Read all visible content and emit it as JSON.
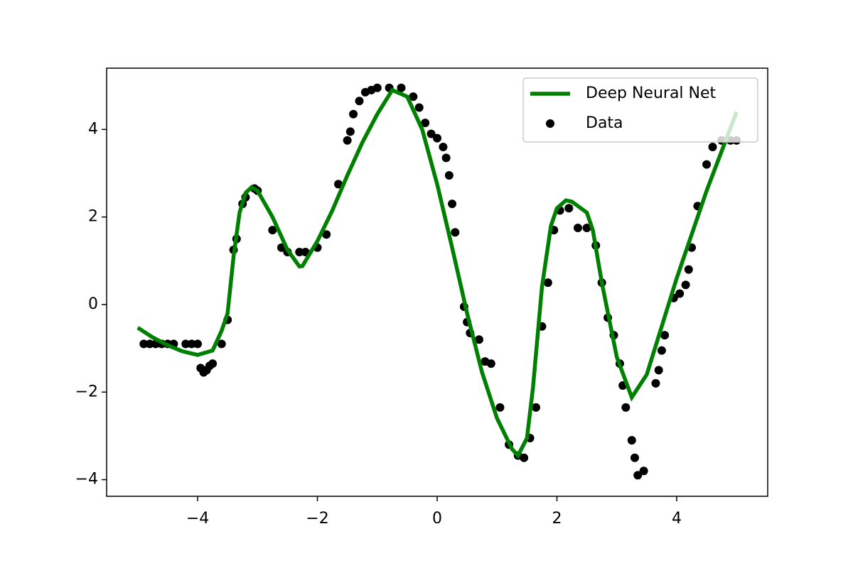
{
  "chart_data": {
    "type": "line",
    "xlim": [
      -5.52,
      5.52
    ],
    "ylim": [
      -4.38,
      5.4
    ],
    "xticks": [
      {
        "value": -4,
        "label": "−4"
      },
      {
        "value": -2,
        "label": "−2"
      },
      0,
      2,
      4
    ],
    "yticks": [
      {
        "value": -4,
        "label": "−4"
      },
      {
        "value": -2,
        "label": "−2"
      },
      0,
      2,
      4
    ],
    "legend": "upper right",
    "series": [
      {
        "name": "Deep Neural Net",
        "type": "line",
        "color": "#008000",
        "x": [
          -5,
          -4.75,
          -4.5,
          -4.25,
          -4,
          -3.75,
          -3.6,
          -3.5,
          -3.4,
          -3.3,
          -3.2,
          -3.1,
          -3,
          -2.75,
          -2.5,
          -2.3,
          -2.25,
          -2,
          -1.75,
          -1.5,
          -1.25,
          -1,
          -0.75,
          -0.5,
          -0.25,
          0,
          0.25,
          0.5,
          0.75,
          1,
          1.25,
          1.35,
          1.5,
          1.6,
          1.75,
          1.9,
          2,
          2.15,
          2.25,
          2.5,
          2.6,
          2.75,
          3,
          3.25,
          3.5,
          3.75,
          4,
          4.25,
          4.5,
          4.75,
          5
        ],
        "values": [
          -0.53,
          -0.75,
          -0.93,
          -1.07,
          -1.15,
          -1.05,
          -0.6,
          -0.2,
          1.1,
          2.1,
          2.55,
          2.68,
          2.6,
          2.0,
          1.25,
          0.87,
          0.88,
          1.45,
          2.15,
          2.95,
          3.7,
          4.35,
          4.9,
          4.75,
          4.0,
          2.75,
          1.3,
          -0.2,
          -1.55,
          -2.6,
          -3.3,
          -3.45,
          -3.05,
          -1.9,
          0.4,
          1.8,
          2.2,
          2.38,
          2.35,
          2.1,
          1.7,
          0.5,
          -1.2,
          -2.12,
          -1.6,
          -0.5,
          0.6,
          1.6,
          2.6,
          3.5,
          4.4
        ]
      },
      {
        "name": "Data",
        "type": "scatter",
        "color": "#000000",
        "x": [
          -4.9,
          -4.8,
          -4.7,
          -4.6,
          -4.5,
          -4.4,
          -4.2,
          -4.1,
          -4.0,
          -3.95,
          -3.9,
          -3.85,
          -3.8,
          -3.75,
          -3.6,
          -3.5,
          -3.4,
          -3.35,
          -3.25,
          -3.2,
          -3.05,
          -3.0,
          -2.75,
          -2.6,
          -2.5,
          -2.3,
          -2.2,
          -2.0,
          -1.85,
          -1.65,
          -1.5,
          -1.45,
          -1.4,
          -1.3,
          -1.2,
          -1.1,
          -1.0,
          -0.8,
          -0.6,
          -0.4,
          -0.3,
          -0.2,
          -0.1,
          0,
          0.1,
          0.15,
          0.2,
          0.25,
          0.3,
          0.45,
          0.5,
          0.55,
          0.7,
          0.8,
          0.9,
          1.05,
          1.2,
          1.35,
          1.45,
          1.55,
          1.65,
          1.75,
          1.85,
          1.95,
          2.05,
          2.2,
          2.35,
          2.5,
          2.65,
          2.75,
          2.85,
          2.95,
          3.05,
          3.1,
          3.15,
          3.25,
          3.3,
          3.35,
          3.45,
          3.65,
          3.7,
          3.75,
          3.8,
          3.95,
          4.05,
          4.15,
          4.2,
          4.25,
          4.35,
          4.5,
          4.6,
          4.75,
          4.9,
          5.0
        ],
        "values": [
          -0.9,
          -0.9,
          -0.9,
          -0.9,
          -0.9,
          -0.9,
          -0.9,
          -0.9,
          -0.9,
          -1.45,
          -1.55,
          -1.5,
          -1.4,
          -1.35,
          -0.9,
          -0.35,
          1.25,
          1.5,
          2.3,
          2.45,
          2.65,
          2.6,
          1.7,
          1.3,
          1.2,
          1.2,
          1.2,
          1.3,
          1.6,
          2.75,
          3.75,
          3.95,
          4.35,
          4.65,
          4.85,
          4.9,
          4.95,
          4.95,
          4.95,
          4.75,
          4.5,
          4.15,
          3.9,
          3.8,
          3.6,
          3.35,
          2.95,
          2.3,
          1.65,
          -0.05,
          -0.4,
          -0.65,
          -0.8,
          -1.3,
          -1.35,
          -2.35,
          -3.2,
          -3.45,
          -3.5,
          -3.05,
          -2.35,
          -0.5,
          0.5,
          1.7,
          2.15,
          2.2,
          1.75,
          1.75,
          1.35,
          0.5,
          -0.3,
          -0.7,
          -1.35,
          -1.85,
          -2.35,
          -3.1,
          -3.5,
          -3.9,
          -3.8,
          -1.8,
          -1.5,
          -1.05,
          -0.7,
          0.15,
          0.25,
          0.45,
          0.8,
          1.3,
          2.25,
          3.2,
          3.6,
          3.75,
          3.75,
          3.75
        ]
      }
    ]
  }
}
